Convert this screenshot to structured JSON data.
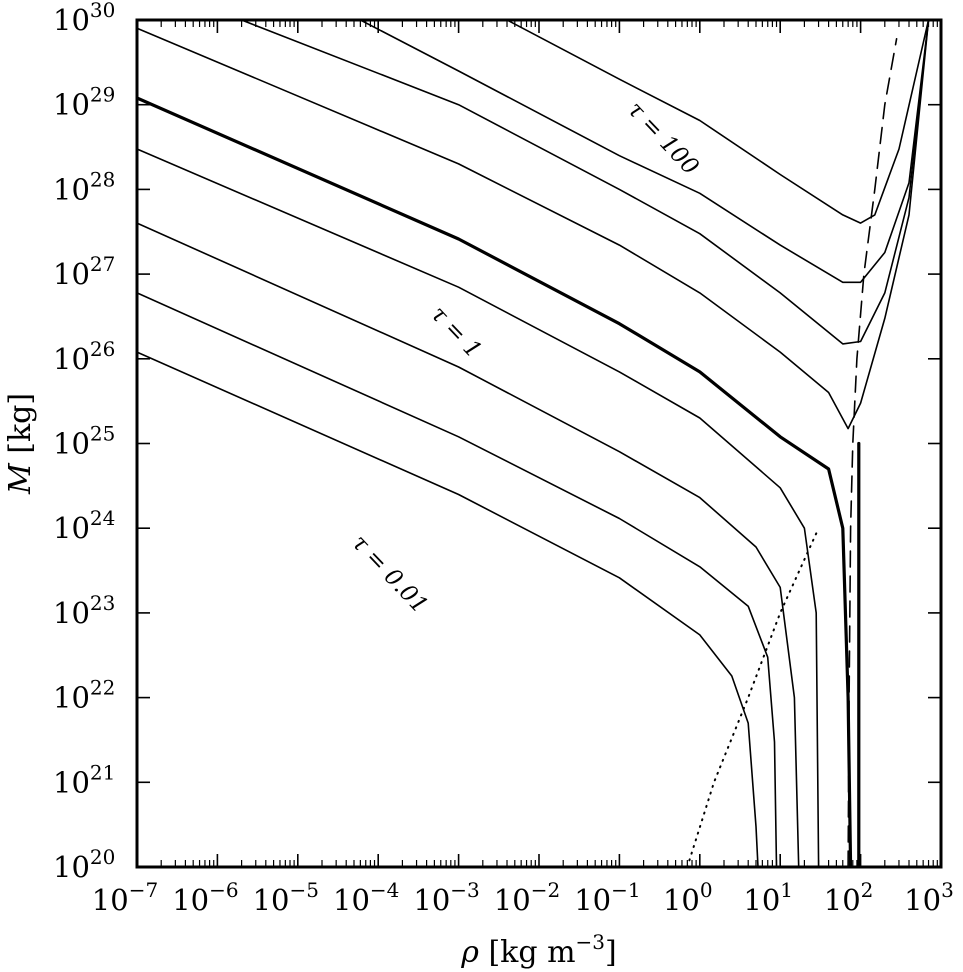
{
  "chart_data": {
    "type": "line",
    "title": "",
    "xlabel": {
      "symbol": "ρ",
      "unit": "[kg m",
      "unit_exp": "−3",
      "unit_close": "]"
    },
    "ylabel": {
      "symbol": "M",
      "unit": "[kg]"
    },
    "xscale": "log",
    "yscale": "log",
    "xlim": [
      1e-07,
      1000.0
    ],
    "ylim": [
      1e+20,
      1e+30
    ],
    "grid": false,
    "legend": "none",
    "x_tick_labels": [
      {
        "value": -7,
        "base": "10",
        "exp": "−7"
      },
      {
        "value": -6,
        "base": "10",
        "exp": "−6"
      },
      {
        "value": -5,
        "base": "10",
        "exp": "−5"
      },
      {
        "value": -4,
        "base": "10",
        "exp": "−4"
      },
      {
        "value": -3,
        "base": "10",
        "exp": "−3"
      },
      {
        "value": -2,
        "base": "10",
        "exp": "−2"
      },
      {
        "value": -1,
        "base": "10",
        "exp": "−1"
      },
      {
        "value": 0,
        "base": "10",
        "exp": "0"
      },
      {
        "value": 1,
        "base": "10",
        "exp": "1"
      },
      {
        "value": 2,
        "base": "10",
        "exp": "2"
      },
      {
        "value": 3,
        "base": "10",
        "exp": "3"
      }
    ],
    "y_tick_labels": [
      {
        "value": 20,
        "base": "10",
        "exp": "20"
      },
      {
        "value": 21,
        "base": "10",
        "exp": "21"
      },
      {
        "value": 22,
        "base": "10",
        "exp": "22"
      },
      {
        "value": 23,
        "base": "10",
        "exp": "23"
      },
      {
        "value": 24,
        "base": "10",
        "exp": "24"
      },
      {
        "value": 25,
        "base": "10",
        "exp": "25"
      },
      {
        "value": 26,
        "base": "10",
        "exp": "26"
      },
      {
        "value": 27,
        "base": "10",
        "exp": "27"
      },
      {
        "value": 28,
        "base": "10",
        "exp": "28"
      },
      {
        "value": 29,
        "base": "10",
        "exp": "29"
      },
      {
        "value": 30,
        "base": "10",
        "exp": "30"
      }
    ],
    "annotations": [
      {
        "text": "τ = 100",
        "x": 0.3,
        "y": 3.5e+28
      },
      {
        "text": "τ = 1",
        "x": 0.0008,
        "y": 1.8e+26
      },
      {
        "text": "τ = 0.01",
        "x": 0.00012,
        "y": 2.5e+23
      }
    ],
    "series": [
      {
        "style": "solid",
        "width": "thin",
        "points": [
          [
            1e-07,
            1.2e+26
          ],
          [
            0.001,
            2.5e+24
          ],
          [
            0.1,
            2.6e+23
          ],
          [
            1,
            5.5e+22
          ],
          [
            2.5,
            1.8e+22
          ],
          [
            4,
            5e+21
          ],
          [
            5,
            3e+20
          ],
          [
            5.3,
            1e+20
          ]
        ]
      },
      {
        "style": "solid",
        "width": "thin",
        "points": [
          [
            1e-07,
            6e+26
          ],
          [
            0.001,
            1.2e+25
          ],
          [
            0.1,
            1.3e+24
          ],
          [
            1,
            3.5e+23
          ],
          [
            4,
            1.2e+23
          ],
          [
            7,
            3e+22
          ],
          [
            8.5,
            3e+21
          ],
          [
            9,
            1e+20
          ]
        ]
      },
      {
        "style": "solid",
        "width": "thin",
        "points": [
          [
            1e-07,
            4e+27
          ],
          [
            0.001,
            8e+25
          ],
          [
            0.1,
            8e+24
          ],
          [
            1,
            2.3e+24
          ],
          [
            5,
            6e+23
          ],
          [
            10,
            2e+23
          ],
          [
            15,
            1e+22
          ],
          [
            17,
            1e+20
          ]
        ]
      },
      {
        "style": "solid",
        "width": "thin",
        "points": [
          [
            1e-07,
            3e+28
          ],
          [
            0.001,
            7e+26
          ],
          [
            0.1,
            7e+25
          ],
          [
            1,
            2e+25
          ],
          [
            10,
            3e+24
          ],
          [
            20,
            1e+24
          ],
          [
            28,
            1e+23
          ],
          [
            30,
            1e+20
          ]
        ]
      },
      {
        "style": "solid",
        "width": "thick",
        "points": [
          [
            1e-07,
            1.2e+29
          ],
          [
            0.001,
            2.6e+27
          ],
          [
            0.1,
            2.6e+26
          ],
          [
            1,
            7e+25
          ],
          [
            10,
            1.2e+25
          ],
          [
            40,
            5e+24
          ],
          [
            60,
            1e+24
          ],
          [
            70,
            1e+22
          ],
          [
            75,
            1e+20
          ]
        ]
      },
      {
        "style": "solid",
        "width": "thin",
        "points": [
          [
            1e-07,
            8e+29
          ],
          [
            0.001,
            2e+28
          ],
          [
            0.1,
            2.2e+27
          ],
          [
            1,
            6e+26
          ],
          [
            10,
            1.2e+26
          ],
          [
            40,
            4e+25
          ],
          [
            70,
            1.5e+25
          ],
          [
            100,
            3e+25
          ],
          [
            200,
            3e+26
          ],
          [
            400,
            5e+27
          ],
          [
            700,
            1e+30
          ]
        ]
      },
      {
        "style": "solid",
        "width": "thin",
        "points": [
          [
            2e-06,
            1e+30
          ],
          [
            0.001,
            1e+29
          ],
          [
            0.1,
            1e+28
          ],
          [
            1,
            3e+27
          ],
          [
            10,
            6e+26
          ],
          [
            60,
            1.5e+26
          ],
          [
            100,
            1.6e+26
          ],
          [
            200,
            6e+26
          ],
          [
            400,
            8e+27
          ],
          [
            700,
            1e+30
          ]
        ]
      },
      {
        "style": "solid",
        "width": "thin",
        "points": [
          [
            6e-05,
            1e+30
          ],
          [
            0.001,
            2.5e+29
          ],
          [
            0.1,
            2.5e+28
          ],
          [
            1,
            9e+27
          ],
          [
            10,
            2.2e+27
          ],
          [
            60,
            8e+26
          ],
          [
            100,
            8e+26
          ],
          [
            200,
            1.8e+27
          ],
          [
            400,
            1.2e+28
          ],
          [
            700,
            1e+30
          ]
        ]
      },
      {
        "style": "solid",
        "width": "thin",
        "points": [
          [
            0.004,
            1e+30
          ],
          [
            0.1,
            2e+29
          ],
          [
            1,
            6.5e+28
          ],
          [
            10,
            1.5e+28
          ],
          [
            60,
            5e+27
          ],
          [
            100,
            4e+27
          ],
          [
            150,
            5e+27
          ],
          [
            300,
            3e+28
          ],
          [
            700,
            1e+30
          ]
        ]
      },
      {
        "style": "dashed",
        "width": "thin",
        "points": [
          [
            70,
            1e+20
          ],
          [
            72,
            1e+22
          ],
          [
            75,
            1e+24
          ],
          [
            80,
            1e+25
          ],
          [
            90,
            1e+26
          ],
          [
            110,
            1e+27
          ],
          [
            150,
            1e+28
          ],
          [
            200,
            1e+29
          ],
          [
            280,
            6e+29
          ]
        ]
      },
      {
        "style": "dotted",
        "width": "thin",
        "points": [
          [
            0.7,
            1e+20
          ],
          [
            1.5,
            1e+21
          ],
          [
            4,
            1e+22
          ],
          [
            10,
            1e+23
          ],
          [
            30,
            1e+24
          ]
        ]
      },
      {
        "style": "solid",
        "width": "thick",
        "points": [
          [
            95,
            1e+20
          ],
          [
            95,
            1e+23
          ],
          [
            95,
            1e+25
          ]
        ]
      }
    ]
  }
}
